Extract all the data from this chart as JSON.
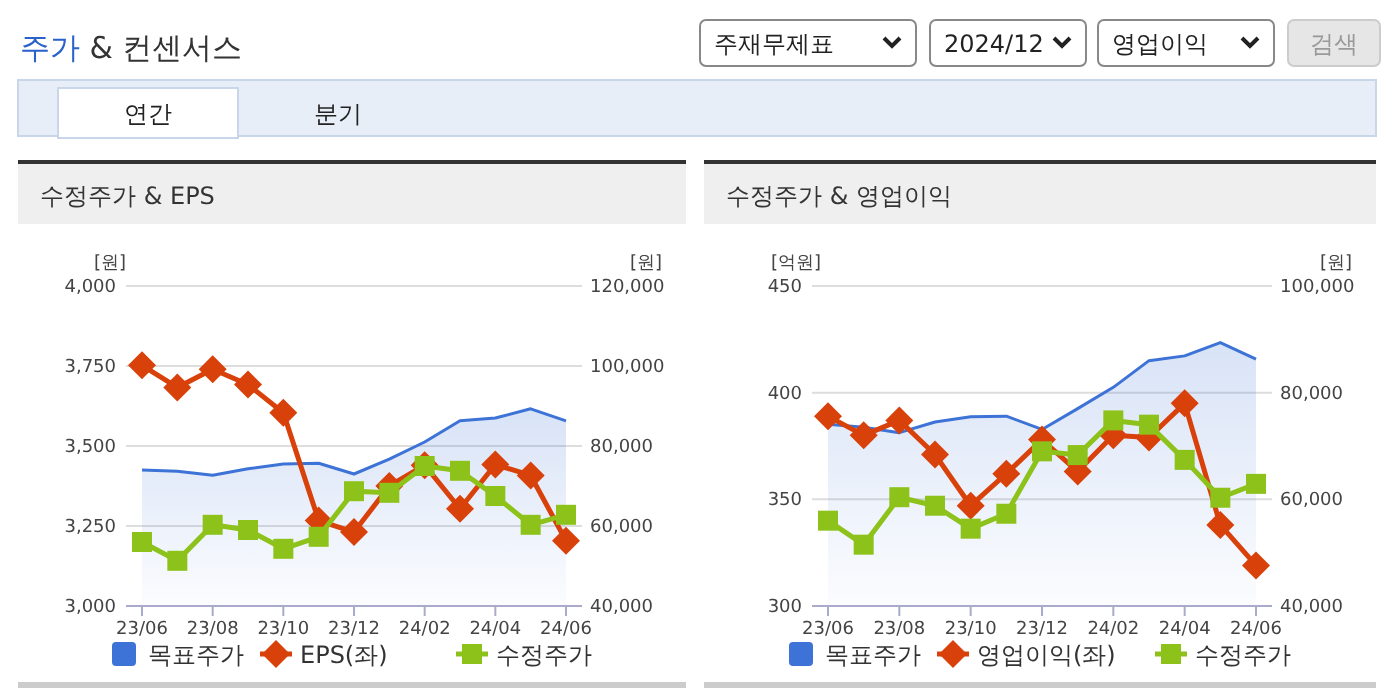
{
  "chart_data": [
    {
      "type": "other",
      "title": "주가 & 컨센서스",
      "annotations": [
        "주재무제표",
        "2024/12",
        "영업이익",
        "검색",
        "연간",
        "분기"
      ]
    },
    {
      "type": "line",
      "title": "수정주가 & EPS",
      "ylabel": "[원]",
      "y2label": "[원]",
      "categories": [
        "23/06",
        null,
        "23/08",
        null,
        "23/10",
        null,
        "23/12",
        null,
        "24/02",
        null,
        "24/04",
        null,
        "24/06"
      ],
      "ylim": [
        3000,
        4000
      ],
      "yticks": [
        {
          "value": 3000,
          "label": "3,000"
        },
        {
          "value": 3250,
          "label": "3,250"
        },
        {
          "value": 3500,
          "label": "3,500"
        },
        {
          "value": 3750,
          "label": "3,750"
        },
        {
          "value": 4000,
          "label": "4,000"
        }
      ],
      "y2lim": [
        40000,
        120000
      ],
      "y2ticks": [
        {
          "value": 40000,
          "label": "40,000"
        },
        {
          "value": 60000,
          "label": "60,000"
        },
        {
          "value": 80000,
          "label": "80,000"
        },
        {
          "value": 100000,
          "label": "100,000"
        },
        {
          "value": 120000,
          "label": "120,000"
        }
      ],
      "grid": "y",
      "legend": "bottom",
      "series": [
        {
          "name": "목표주가",
          "type": "area",
          "axis": "y2",
          "color": "#3d73d6",
          "marker": "none",
          "values": [
            74000,
            73700,
            72700,
            74300,
            75500,
            75700,
            73000,
            76700,
            81000,
            86300,
            87000,
            89300,
            86300
          ]
        },
        {
          "name": "EPS(좌)",
          "type": "line",
          "color": "#d9410a",
          "marker": "diamond",
          "values": [
            3752,
            3683,
            3740,
            3692,
            3604,
            3267,
            3231,
            3375,
            3440,
            3304,
            3442,
            3408,
            3204
          ]
        },
        {
          "name": "수정주가",
          "type": "line",
          "axis": "y2",
          "color": "#8cc21a",
          "marker": "square",
          "values": [
            56000,
            51300,
            60300,
            59000,
            54300,
            57300,
            68700,
            68300,
            75000,
            73800,
            67500,
            60300,
            62800
          ]
        }
      ]
    },
    {
      "type": "line",
      "title": "수정주가 & 영업이익",
      "ylabel": "[억원]",
      "y2label": "[원]",
      "categories": [
        "23/06",
        null,
        "23/08",
        null,
        "23/10",
        null,
        "23/12",
        null,
        "24/02",
        null,
        "24/04",
        null,
        "24/06"
      ],
      "ylim": [
        300,
        450
      ],
      "yticks": [
        300,
        350,
        400,
        450
      ],
      "y2lim": [
        40000,
        100000
      ],
      "y2ticks": [
        {
          "value": 40000,
          "label": "40,000"
        },
        {
          "value": 60000,
          "label": "60,000"
        },
        {
          "value": 80000,
          "label": "80,000"
        },
        {
          "value": 100000,
          "label": "100,000"
        }
      ],
      "grid": "y",
      "legend": "bottom",
      "series": [
        {
          "name": "목표주가",
          "type": "area",
          "axis": "y2",
          "color": "#3d73d6",
          "marker": "none",
          "values": [
            74100,
            73500,
            72500,
            74500,
            75500,
            75600,
            73100,
            77000,
            81000,
            86000,
            86900,
            89400,
            86300
          ]
        },
        {
          "name": "영업이익(좌)",
          "type": "line",
          "color": "#d9410a",
          "marker": "diamond",
          "values": [
            389,
            380,
            387,
            371,
            347,
            362,
            378,
            363,
            380,
            379,
            395,
            338,
            319
          ]
        },
        {
          "name": "수정주가",
          "type": "line",
          "axis": "y2",
          "color": "#8cc21a",
          "marker": "square",
          "values": [
            56000,
            51500,
            60400,
            58800,
            54500,
            57300,
            69000,
            68300,
            74800,
            74000,
            67400,
            60300,
            62900
          ]
        }
      ]
    }
  ]
}
